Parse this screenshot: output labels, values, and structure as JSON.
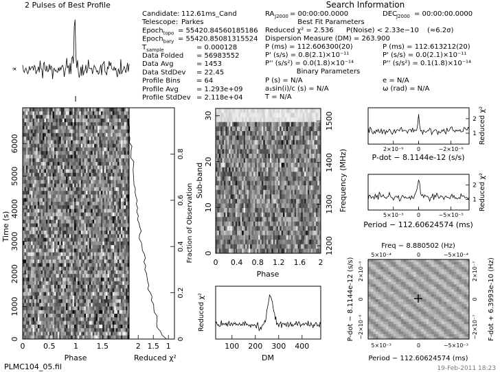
{
  "figure": {
    "top_title": "2 Pulses of Best Profile",
    "file_name": "PLMC104_05.fil",
    "date_stamp": "19-Feb-2011 18:23"
  },
  "info_left": [
    {
      "label": "Candidate:",
      "value": "112.61ms_Cand"
    },
    {
      "label": "Telescope:",
      "value": "Parkes"
    },
    {
      "label": "Epoch",
      "sub": "topo",
      "value": "= 55420.84560185186"
    },
    {
      "label": "Epoch",
      "sub": "bary",
      "value": "= 55420.85081315524"
    },
    {
      "label": "T",
      "sub": "sample",
      "value": "0.000128"
    },
    {
      "label": "Data Folded",
      "value": "56983552"
    },
    {
      "label": "Data Avg",
      "value": "1453"
    },
    {
      "label": "Data StdDev",
      "value": "22.45"
    },
    {
      "label": "Profile Bins",
      "value": "64"
    },
    {
      "label": "Profile Avg",
      "value": "1.293e+09"
    },
    {
      "label": "Profile StdDev",
      "value": "2.118e+04"
    }
  ],
  "search_info": {
    "heading": "Search Information",
    "ra": {
      "label": "RA",
      "sub": "J2000",
      "value": "= 00:00:00.0000"
    },
    "dec": {
      "label": "DEC",
      "sub": "J2000",
      "value": "= 00:00:00.0000"
    },
    "best_fit_heading": "Best Fit Parameters",
    "reduced_chi2": "Reduced χ² = 2.536",
    "p_noise": "P(Noise) < 2.33e−10",
    "sigma": "(≈6.2σ)",
    "dm_line": "Dispersion Measure (DM) = 263.900",
    "p_topo": "P     (ms)  =  112.606300(20)",
    "p_bary": "P     (ms)  =  112.613212(20)",
    "pdot_topo": "P'    (s/s)  =  0.8(2.1)×10⁻¹¹",
    "pdot_bary": "P'    (s/s)  =  0.0(2.1)×10⁻¹¹",
    "pddot_topo": "P''   (s/s²)  =  0.0(1.8)×10⁻¹⁴",
    "pddot_bary": "P''   (s/s²)  =  0.1(1.8)×10⁻¹⁴",
    "binary_heading": "Binary Parameters",
    "p_orb": "P     (s)  =  N/A",
    "e": "e  =  N/A",
    "asini": "a₁sin(i)/c (s)  =  N/A",
    "omega": "ω  (rad)  =  N/A",
    "t_peri": "T      =  N/A"
  },
  "axes": {
    "time_phase": {
      "xlabel": "Phase",
      "ylabel": "Time (s)",
      "xticks": [
        "0",
        "0.5",
        "1",
        "1.5"
      ],
      "yticks": [
        "0",
        "1000",
        "2000",
        "3000",
        "4000",
        "5000",
        "6000"
      ]
    },
    "chi2_time": {
      "xlabel": "Reduced χ²",
      "ylabel": "Fraction of Observation",
      "xticks": [
        "2",
        "1.5",
        "1"
      ],
      "yticks": [
        "0",
        "0.2",
        "0.4",
        "0.6",
        "0.8"
      ]
    },
    "subband": {
      "xlabel": "Phase",
      "ylabel": "Sub-band",
      "y2label": "Frequency (MHz)",
      "xticks": [
        "0",
        "0.4",
        "0.8",
        "1.2",
        "1.6",
        "2"
      ],
      "yticks": [
        "0",
        "10",
        "20",
        "30"
      ],
      "y2ticks": [
        "1200",
        "1300",
        "1400",
        "1500"
      ]
    },
    "dm": {
      "xlabel": "DM",
      "ylabel": "Reduced χ²",
      "xticks": [
        "100",
        "200",
        "300",
        "400"
      ]
    },
    "pdot": {
      "xlabel": "P-dot − 8.1144e-12 (s/s)",
      "ylabel": "Reduced χ²",
      "xticks": [
        "2×10⁻⁹",
        "0",
        "−2×10⁻⁹"
      ],
      "yticks": [
        "1",
        "2"
      ]
    },
    "period": {
      "xlabel": "Period − 112.60624574 (ms)",
      "ylabel": "Reduced χ²",
      "xticks": [
        "5×10⁻³",
        "0",
        "−5×10⁻³"
      ],
      "yticks": [
        "1",
        "2"
      ]
    },
    "ppdot": {
      "top_label": "Freq − 8.880502 (Hz)",
      "xlabel": "Period − 112.60624574 (ms)",
      "ylabel": "P-dot − 8.1144e-12 (s/s)",
      "y2label": "F-dot + 6.3993e-10 (Hz)",
      "top_ticks": [
        "5×10⁻⁴",
        "0",
        "−5×10⁻⁴"
      ],
      "xticks": [
        "5×10⁻³",
        "0",
        "−5×10⁻³"
      ],
      "yticks": [
        "−2×10⁻⁹",
        "0",
        "2×10⁻⁹"
      ],
      "y2ticks": [
        "−2×10⁻⁷",
        "0",
        "2×10⁻⁷"
      ]
    }
  },
  "chart_data": [
    {
      "type": "line",
      "name": "pulse_profile",
      "x_range": [
        0,
        2
      ],
      "bins": 64,
      "note": "noise baseline with narrow peak at phase ~0.98"
    },
    {
      "type": "heatmap",
      "name": "time_vs_phase",
      "x_range": [
        0,
        2
      ],
      "y_range": [
        0,
        7000
      ]
    },
    {
      "type": "line",
      "name": "reduced_chi2_vs_time",
      "x_range": [
        2.3,
        0.8
      ],
      "y_range": [
        0,
        1
      ]
    },
    {
      "type": "heatmap",
      "name": "subband_vs_phase",
      "x_range": [
        0,
        2
      ],
      "y_range": [
        0,
        32
      ],
      "freq_range_mhz": [
        1182,
        1518
      ]
    },
    {
      "type": "line",
      "name": "reduced_chi2_vs_dm",
      "x_range": [
        30,
        480
      ],
      "y_range": [
        0.5,
        3
      ],
      "peak": {
        "x": 264,
        "y": 2.5
      }
    },
    {
      "type": "line",
      "name": "reduced_chi2_vs_pdot",
      "peak": {
        "x": 0,
        "y": 2.2
      }
    },
    {
      "type": "line",
      "name": "reduced_chi2_vs_period",
      "peak": {
        "x": 0,
        "y": 2.3
      }
    },
    {
      "type": "heatmap",
      "name": "period_pdot_plane",
      "best": {
        "x": 0,
        "y": 0
      }
    }
  ]
}
